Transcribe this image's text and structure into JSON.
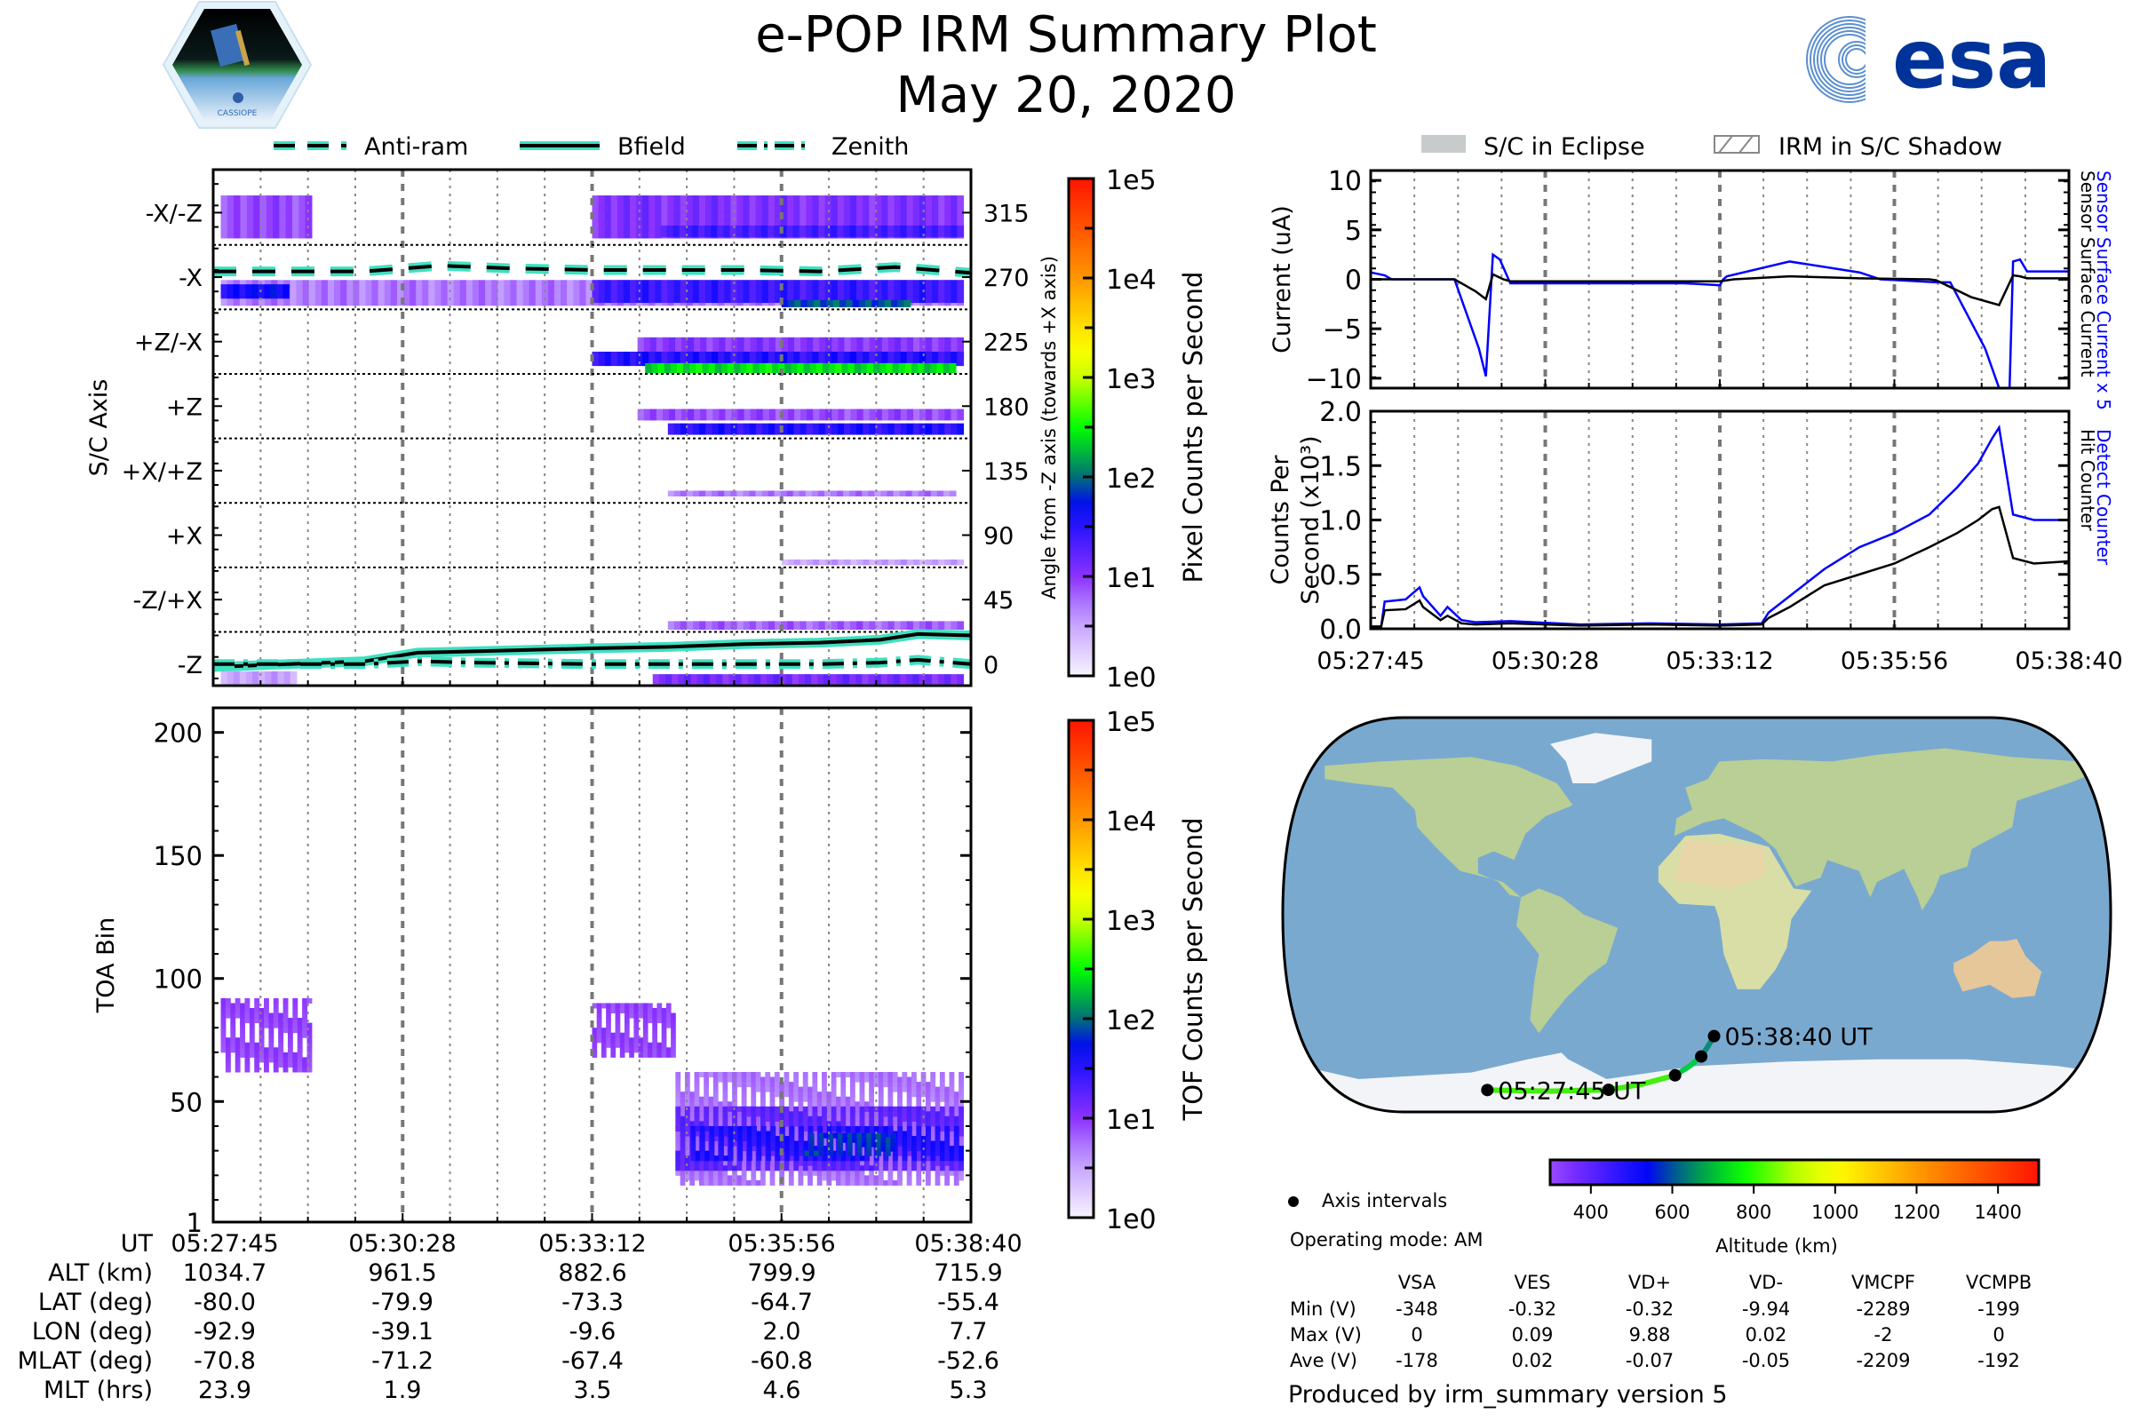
{
  "header": {
    "title": "e-POP IRM Summary Plot",
    "date": "May 20, 2020",
    "left_logo": "cassiope-mission-logo",
    "left_logo_text": "CASSIOPE",
    "right_logo_text": "esa",
    "right_logo_color": "#003399"
  },
  "legend_left": [
    {
      "label": "Anti-ram",
      "style": "dashed"
    },
    {
      "label": "Bfield",
      "style": "solid"
    },
    {
      "label": "Zenith",
      "style": "dashdot"
    }
  ],
  "legend_right": [
    {
      "label": "S/C in Eclipse",
      "style": "filled-gray"
    },
    {
      "label": "IRM in S/C Shadow",
      "style": "hatched"
    }
  ],
  "chart_data": [
    {
      "id": "angle-panel",
      "type": "heatmap",
      "ylabel": "S/C Axis",
      "y2label": "Angle from -Z axis (towards +X axis)",
      "ylim": [
        -15,
        345
      ],
      "yticks_left": [
        {
          "v": 315,
          "label": "-X/-Z"
        },
        {
          "v": 270,
          "label": "-X"
        },
        {
          "v": 225,
          "label": "+Z/-X"
        },
        {
          "v": 180,
          "label": "+Z"
        },
        {
          "v": 135,
          "label": "+X/+Z"
        },
        {
          "v": 90,
          "label": "+X"
        },
        {
          "v": 45,
          "label": "-Z/+X"
        },
        {
          "v": 0,
          "label": "-Z"
        }
      ],
      "yticks_right": [
        315,
        270,
        225,
        180,
        135,
        90,
        45,
        0
      ],
      "sector_boundaries": [
        292.5,
        247.5,
        202.5,
        157.5,
        112.5,
        67.5,
        22.5
      ],
      "colorbar": {
        "label": "Pixel Counts per Second",
        "ticks": [
          "1e0",
          "1e1",
          "1e2",
          "1e3",
          "1e4",
          "1e5"
        ],
        "scale": "log"
      },
      "bands": [
        {
          "y0": 297,
          "y1": 327,
          "t0": 0.01,
          "t1": 0.13,
          "log": 0.9
        },
        {
          "y0": 297,
          "y1": 327,
          "t0": 0.5,
          "t1": 0.99,
          "log": 1.05
        },
        {
          "y0": 298,
          "y1": 306,
          "t0": 0.59,
          "t1": 0.99,
          "log": 1.35
        },
        {
          "y0": 250,
          "y1": 268,
          "t0": 0.01,
          "t1": 0.99,
          "log": 0.7
        },
        {
          "y0": 255,
          "y1": 265,
          "t0": 0.01,
          "t1": 0.1,
          "log": 1.6
        },
        {
          "y0": 252,
          "y1": 268,
          "t0": 0.5,
          "t1": 0.99,
          "log": 1.4
        },
        {
          "y0": 249,
          "y1": 254,
          "t0": 0.75,
          "t1": 0.92,
          "log": 1.9
        },
        {
          "y0": 213,
          "y1": 228,
          "t0": 0.56,
          "t1": 0.99,
          "log": 1.0
        },
        {
          "y0": 208,
          "y1": 218,
          "t0": 0.5,
          "t1": 0.99,
          "log": 1.5
        },
        {
          "y0": 203,
          "y1": 210,
          "t0": 0.57,
          "t1": 0.98,
          "log": 2.4
        },
        {
          "y0": 170,
          "y1": 178,
          "t0": 0.56,
          "t1": 0.99,
          "log": 0.9
        },
        {
          "y0": 160,
          "y1": 168,
          "t0": 0.6,
          "t1": 0.99,
          "log": 1.5
        },
        {
          "y0": 117,
          "y1": 121,
          "t0": 0.6,
          "t1": 0.98,
          "log": 0.7
        },
        {
          "y0": 69,
          "y1": 73,
          "t0": 0.75,
          "t1": 0.99,
          "log": 0.5
        },
        {
          "y0": 24,
          "y1": 30,
          "t0": 0.6,
          "t1": 0.99,
          "log": 0.8
        },
        {
          "y0": -14,
          "y1": -7,
          "t0": 0.58,
          "t1": 0.99,
          "log": 1.1
        },
        {
          "y0": -14,
          "y1": -5,
          "t0": 0.01,
          "t1": 0.11,
          "log": 0.5
        }
      ],
      "series": [
        {
          "name": "Anti-ram",
          "style": "dashed",
          "t": [
            0,
            0.1,
            0.2,
            0.3,
            0.4,
            0.5,
            0.6,
            0.7,
            0.8,
            0.9,
            0.95,
            1.0
          ],
          "y": [
            274,
            274,
            274,
            278,
            276,
            275,
            275,
            275,
            274,
            277,
            275,
            273
          ]
        },
        {
          "name": "Bfield",
          "style": "solid",
          "t": [
            0,
            0.1,
            0.2,
            0.27,
            0.35,
            0.5,
            0.6,
            0.7,
            0.8,
            0.88,
            0.93,
            1.0
          ],
          "y": [
            -2,
            0,
            2,
            8,
            9,
            11,
            12,
            14,
            15,
            17,
            21,
            20
          ]
        },
        {
          "name": "Zenith",
          "style": "dashdot",
          "t": [
            0,
            0.1,
            0.2,
            0.27,
            0.35,
            0.5,
            0.6,
            0.7,
            0.8,
            0.88,
            0.93,
            1.0
          ],
          "y": [
            0,
            0,
            0,
            2,
            1,
            0,
            0,
            0,
            0,
            1,
            3,
            0
          ]
        }
      ]
    },
    {
      "id": "toa-panel",
      "type": "heatmap",
      "ylabel": "TOA Bin",
      "ylim": [
        1,
        210
      ],
      "yticks": [
        1,
        50,
        100,
        150,
        200
      ],
      "colorbar": {
        "label": "TOF Counts per Second",
        "ticks": [
          "1e0",
          "1e1",
          "1e2",
          "1e3",
          "1e4",
          "1e5"
        ],
        "scale": "log"
      },
      "blobs": [
        {
          "t0": 0.01,
          "t1": 0.13,
          "y0": 62,
          "y1": 92,
          "log": 0.9
        },
        {
          "t0": 0.5,
          "t1": 0.61,
          "y0": 68,
          "y1": 90,
          "log": 0.9
        },
        {
          "t0": 0.61,
          "t1": 0.99,
          "y0": 16,
          "y1": 62,
          "log": 0.7
        },
        {
          "t0": 0.61,
          "t1": 0.99,
          "y0": 22,
          "y1": 48,
          "log": 1.2
        },
        {
          "t0": 0.63,
          "t1": 0.99,
          "y0": 26,
          "y1": 40,
          "log": 1.5
        },
        {
          "t0": 0.78,
          "t1": 0.9,
          "y0": 28,
          "y1": 37,
          "log": 1.8
        }
      ]
    },
    {
      "id": "current-panel",
      "type": "line",
      "ylabel": "Current (uA)",
      "ylim": [
        -11,
        11
      ],
      "yticks": [
        10,
        5,
        0,
        -5,
        -10
      ],
      "right_labels": [
        {
          "text": "Sensor Surface Current x 5",
          "color": "#0000ff"
        },
        {
          "text": "Sensor Surface Current",
          "color": "#000000"
        }
      ],
      "series": [
        {
          "name": "Sensor Surface Current x 5",
          "color": "#0000ff",
          "t": [
            0,
            0.02,
            0.03,
            0.06,
            0.12,
            0.155,
            0.165,
            0.175,
            0.185,
            0.2,
            0.45,
            0.5,
            0.505,
            0.51,
            0.6,
            0.7,
            0.73,
            0.81,
            0.83,
            0.88,
            0.9,
            0.915,
            0.92,
            0.93,
            0.94,
            1.0
          ],
          "y": [
            0.7,
            0.4,
            0,
            0,
            0,
            -7,
            -9.8,
            2.5,
            2,
            -0.4,
            -0.4,
            -0.6,
            0,
            0.3,
            1.8,
            0.7,
            0,
            -0.3,
            -0.3,
            -7,
            -11,
            -11,
            1.8,
            2,
            0.8,
            0.8
          ]
        },
        {
          "name": "Sensor Surface Current",
          "color": "#000000",
          "t": [
            0,
            0.06,
            0.12,
            0.15,
            0.165,
            0.175,
            0.19,
            0.2,
            0.5,
            0.52,
            0.6,
            0.7,
            0.8,
            0.81,
            0.86,
            0.9,
            0.92,
            0.93,
            0.94,
            1.0
          ],
          "y": [
            0,
            0,
            0,
            -1.2,
            -2,
            0.5,
            0,
            -0.2,
            -0.2,
            0,
            0.3,
            0.1,
            0,
            -0.1,
            -1.8,
            -2.6,
            0.4,
            0.3,
            0.1,
            0.1
          ]
        }
      ]
    },
    {
      "id": "counts-panel",
      "type": "line",
      "ylabel": "Counts Per Second (x10³)",
      "ylabel_lines": [
        "Counts Per",
        "Second (x10³)"
      ],
      "ylim": [
        0,
        2.0
      ],
      "yticks": [
        0.0,
        0.5,
        1.0,
        1.5,
        2.0
      ],
      "xticks": [
        "05:27:45",
        "05:30:28",
        "05:33:12",
        "05:35:56",
        "05:38:40"
      ],
      "right_labels": [
        {
          "text": "Detect Counter",
          "color": "#0000ff"
        },
        {
          "text": "Hit Counter",
          "color": "#000000"
        }
      ],
      "series": [
        {
          "name": "Detect Counter",
          "color": "#0000ff",
          "t": [
            0,
            0.015,
            0.02,
            0.05,
            0.07,
            0.075,
            0.1,
            0.11,
            0.13,
            0.15,
            0.2,
            0.3,
            0.4,
            0.5,
            0.56,
            0.57,
            0.6,
            0.65,
            0.7,
            0.75,
            0.8,
            0.84,
            0.87,
            0.89,
            0.9,
            0.92,
            0.95,
            1.0
          ],
          "y": [
            0.02,
            0.02,
            0.25,
            0.27,
            0.38,
            0.3,
            0.12,
            0.2,
            0.08,
            0.06,
            0.07,
            0.04,
            0.05,
            0.04,
            0.05,
            0.15,
            0.3,
            0.55,
            0.75,
            0.88,
            1.05,
            1.3,
            1.52,
            1.75,
            1.85,
            1.05,
            1.0,
            1.0
          ]
        },
        {
          "name": "Hit Counter",
          "color": "#000000",
          "t": [
            0,
            0.015,
            0.02,
            0.05,
            0.07,
            0.075,
            0.1,
            0.11,
            0.13,
            0.15,
            0.2,
            0.3,
            0.4,
            0.5,
            0.56,
            0.57,
            0.6,
            0.65,
            0.7,
            0.75,
            0.8,
            0.84,
            0.87,
            0.89,
            0.9,
            0.92,
            0.95,
            1.0
          ],
          "y": [
            0.02,
            0.02,
            0.17,
            0.18,
            0.26,
            0.2,
            0.08,
            0.12,
            0.05,
            0.04,
            0.05,
            0.03,
            0.04,
            0.03,
            0.04,
            0.1,
            0.2,
            0.4,
            0.5,
            0.6,
            0.75,
            0.88,
            1.0,
            1.1,
            1.12,
            0.65,
            0.6,
            0.62
          ]
        }
      ]
    },
    {
      "id": "orbit-map",
      "type": "scatter",
      "projection": "robinson-like world map",
      "track_lon": [
        -92.9,
        -65,
        -39.1,
        -25,
        -9.6,
        -3,
        2.0,
        5,
        7.7
      ],
      "track_lat": [
        -80.0,
        -80.5,
        -79.9,
        -77.5,
        -73.3,
        -69,
        -64.7,
        -60,
        -55.4
      ],
      "axis_interval_points": [
        {
          "lon": -92.9,
          "lat": -80.0
        },
        {
          "lon": -39.1,
          "lat": -79.9
        },
        {
          "lon": -9.6,
          "lat": -73.3
        },
        {
          "lon": 2.0,
          "lat": -64.7
        },
        {
          "lon": 7.7,
          "lat": -55.4
        }
      ],
      "start_label": "05:27:45 UT",
      "end_label": "05:38:40 UT",
      "colorbar": {
        "label": "Altitude (km)",
        "ticks": [
          400,
          600,
          800,
          1000,
          1200,
          1400
        ],
        "range": [
          300,
          1500
        ]
      }
    }
  ],
  "time_axis": {
    "row_labels": [
      "UT",
      "ALT (km)",
      "LAT (deg)",
      "LON (deg)",
      "MLAT (deg)",
      "MLT (hrs)"
    ],
    "columns": [
      [
        "05:27:45",
        "1034.7",
        "-80.0",
        "-92.9",
        "-70.8",
        "23.9"
      ],
      [
        "05:30:28",
        "961.5",
        "-79.9",
        "-39.1",
        "-71.2",
        "1.9"
      ],
      [
        "05:33:12",
        "882.6",
        "-73.3",
        "-9.6",
        "-67.4",
        "3.5"
      ],
      [
        "05:35:56",
        "799.9",
        "-64.7",
        "2.0",
        "-60.8",
        "4.6"
      ],
      [
        "05:38:40",
        "715.9",
        "-55.4",
        "7.7",
        "-52.6",
        "5.3"
      ]
    ]
  },
  "info": {
    "axis_intervals_label": "Axis intervals",
    "operating_mode": "Operating mode: AM",
    "produced_by": "Produced by irm_summary version 5"
  },
  "voltages": {
    "headers": [
      "VSA",
      "VES",
      "VD+",
      "VD-",
      "VMCPF",
      "VCMPB"
    ],
    "rows": [
      {
        "label": "Min (V)",
        "values": [
          "-348",
          "-0.32",
          "-0.32",
          "-9.94",
          "-2289",
          "-199"
        ]
      },
      {
        "label": "Max (V)",
        "values": [
          "0",
          "0.09",
          "9.88",
          "0.02",
          "-2",
          "0"
        ]
      },
      {
        "label": "Ave (V)",
        "values": [
          "-178",
          "0.02",
          "-0.07",
          "-0.05",
          "-2209",
          "-192"
        ]
      }
    ]
  },
  "colors": {
    "line_highlight": "#40e0c0",
    "detect_blue": "#0000ff",
    "esa_blue": "#003399"
  }
}
